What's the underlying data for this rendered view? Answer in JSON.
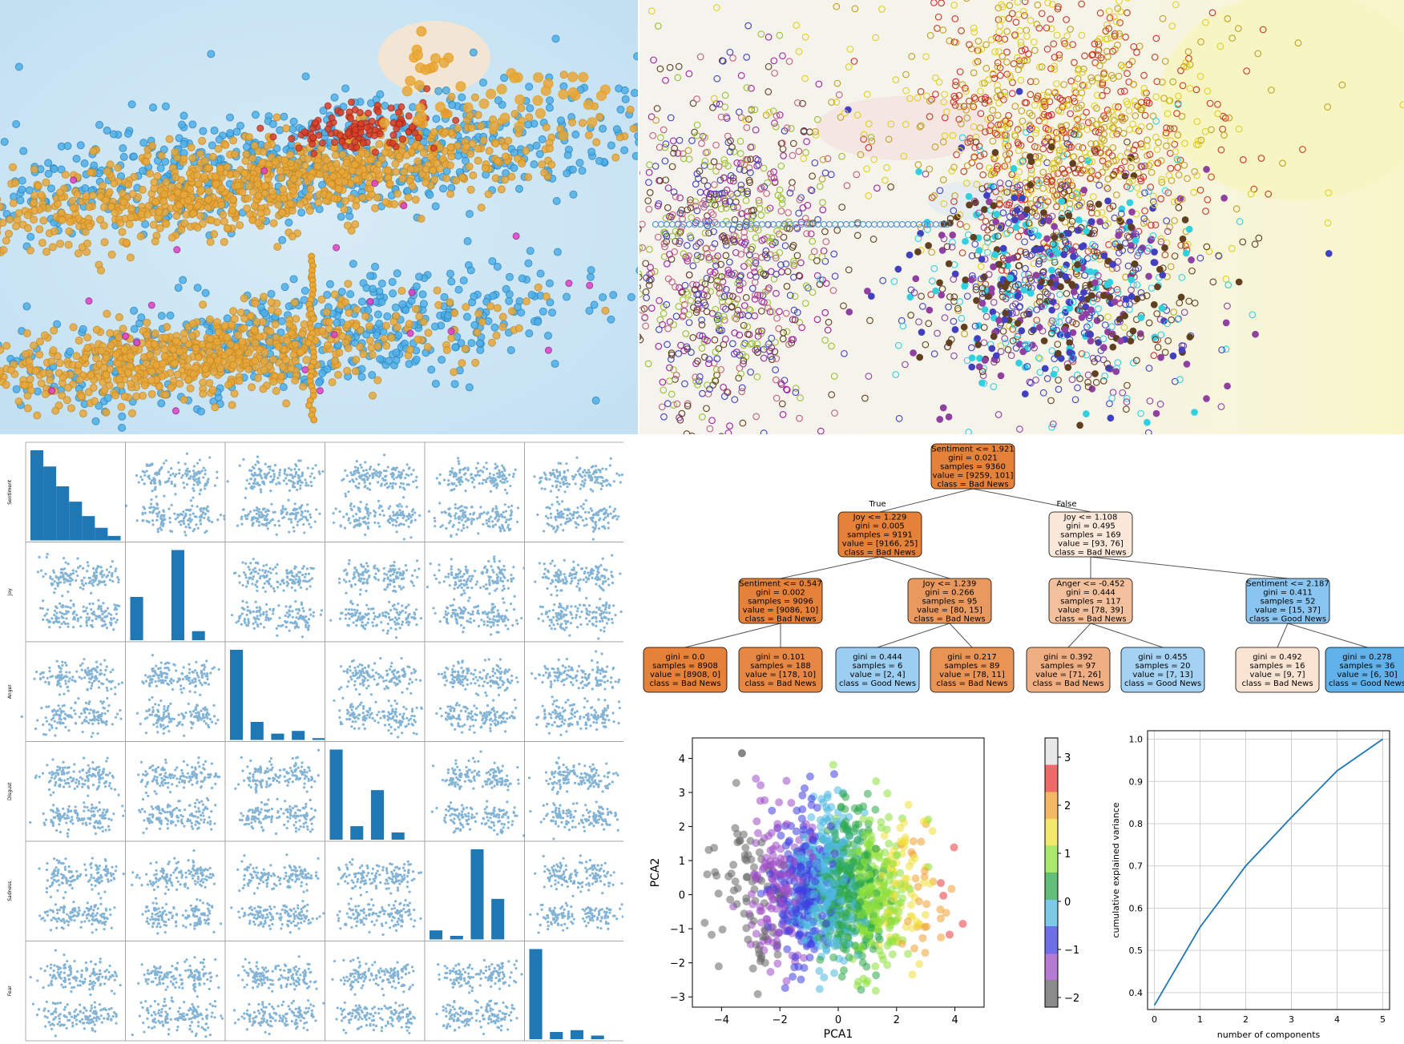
{
  "colors": {
    "blue": "#1f77b4",
    "orange_node": "#e58139",
    "blue_node": "#399de5",
    "scatter_blue": "#4fb0e6",
    "scatter_orange": "#e8a83a",
    "scatter_red": "#d9402a",
    "scatter_yellow": "#f0c419",
    "scatter_magenta": "#e040c8"
  },
  "scatter_matrix": {
    "variables": [
      "Sentiment",
      "Joy",
      "Anger",
      "Disgust",
      "Sadness",
      "Fear"
    ],
    "diag_hist": [
      [
        100,
        82,
        60,
        43,
        27,
        14,
        5
      ],
      [
        48,
        0,
        100,
        10
      ],
      [
        100,
        20,
        7,
        10,
        2
      ],
      [
        100,
        15,
        55,
        8
      ],
      [
        10,
        4,
        100,
        45
      ],
      [
        100,
        8,
        10,
        4
      ]
    ]
  },
  "tree": {
    "true_label": "True",
    "false_label": "False",
    "nodes": [
      {
        "id": "n0",
        "lines": [
          "Sentiment <= 1.921",
          "gini = 0.021",
          "samples = 9360",
          "value = [9259, 101]",
          "class = Bad News"
        ],
        "fill": "#e5823a"
      },
      {
        "id": "n1",
        "lines": [
          "Joy <= 1.229",
          "gini = 0.005",
          "samples = 9191",
          "value = [9166, 25]",
          "class = Bad News"
        ],
        "fill": "#e58139"
      },
      {
        "id": "n2",
        "lines": [
          "Joy <= 1.108",
          "gini = 0.495",
          "samples = 169",
          "value = [93, 76]",
          "class = Bad News"
        ],
        "fill": "#fae8db"
      },
      {
        "id": "n3",
        "lines": [
          "Sentiment <= 0.547",
          "gini = 0.002",
          "samples = 9096",
          "value = [9086, 10]",
          "class = Bad News"
        ],
        "fill": "#e58139"
      },
      {
        "id": "n4",
        "lines": [
          "Joy <= 1.239",
          "gini = 0.266",
          "samples = 95",
          "value = [80, 15]",
          "class = Bad News"
        ],
        "fill": "#ea995e"
      },
      {
        "id": "n5",
        "lines": [
          "Anger <= -0.452",
          "gini = 0.444",
          "samples = 117",
          "value = [78, 39]",
          "class = Bad News"
        ],
        "fill": "#f2c09c"
      },
      {
        "id": "n6",
        "lines": [
          "Sentiment <= 2.187",
          "gini = 0.411",
          "samples = 52",
          "value = [15, 37]",
          "class = Good News"
        ],
        "fill": "#89c5f0"
      },
      {
        "id": "n7",
        "lines": [
          "gini = 0.0",
          "samples = 8908",
          "value = [8908, 0]",
          "class = Bad News"
        ],
        "fill": "#e58139"
      },
      {
        "id": "n8",
        "lines": [
          "gini = 0.101",
          "samples = 188",
          "value = [178, 10]",
          "class = Bad News"
        ],
        "fill": "#e68844"
      },
      {
        "id": "n9",
        "lines": [
          "gini = 0.444",
          "samples = 6",
          "value = [2, 4]",
          "class = Good News"
        ],
        "fill": "#9ccef2"
      },
      {
        "id": "n10",
        "lines": [
          "gini = 0.217",
          "samples = 89",
          "value = [78, 11]",
          "class = Bad News"
        ],
        "fill": "#e99355"
      },
      {
        "id": "n11",
        "lines": [
          "gini = 0.392",
          "samples = 97",
          "value = [71, 26]",
          "class = Bad News"
        ],
        "fill": "#efaf82"
      },
      {
        "id": "n12",
        "lines": [
          "gini = 0.455",
          "samples = 20",
          "value = [7, 13]",
          "class = Good News"
        ],
        "fill": "#a4d2f3"
      },
      {
        "id": "n13",
        "lines": [
          "gini = 0.492",
          "samples = 16",
          "value = [9, 7]",
          "class = Bad News"
        ],
        "fill": "#f9e3d3"
      },
      {
        "id": "n14",
        "lines": [
          "gini = 0.278",
          "samples = 36",
          "value = [6, 30]",
          "class = Good News"
        ],
        "fill": "#61b1ea"
      }
    ]
  },
  "chart_data": [
    {
      "type": "scatter",
      "panel": "pca",
      "xlabel": "PCA1",
      "ylabel": "PCA2",
      "xlim": [
        -5,
        5
      ],
      "ylim": [
        -3.3,
        4.6
      ],
      "xticks": [
        "−4",
        "−2",
        "0",
        "2",
        "4"
      ],
      "yticks": [
        "−3",
        "−2",
        "−1",
        "0",
        "1",
        "2",
        "3",
        "4"
      ],
      "colorbar_ticks": [
        "3",
        "2",
        "1",
        "0",
        "−1",
        "−2"
      ],
      "colorbar_range": [
        -2.2,
        3.4
      ],
      "colormap": [
        "#666666",
        "#9d4dc4",
        "#3f3fe0",
        "#4fb8e0",
        "#2ea84c",
        "#8ee03c",
        "#f0e03c",
        "#f0a030",
        "#e83a3a",
        "#e0e0e0"
      ]
    },
    {
      "type": "line",
      "panel": "explained-variance",
      "x": [
        0,
        1,
        2,
        3,
        4,
        5
      ],
      "y": [
        0.37,
        0.555,
        0.7,
        0.815,
        0.925,
        1.0
      ],
      "xlabel": "number of components",
      "ylabel": "cumulative explained variance",
      "xlim": [
        -0.15,
        5.15
      ],
      "ylim": [
        0.36,
        1.02
      ],
      "xticks": [
        "0",
        "1",
        "2",
        "3",
        "4",
        "5"
      ],
      "yticks": [
        "0.4",
        "0.5",
        "0.6",
        "0.7",
        "0.8",
        "0.9",
        "1.0"
      ],
      "grid": true
    }
  ]
}
